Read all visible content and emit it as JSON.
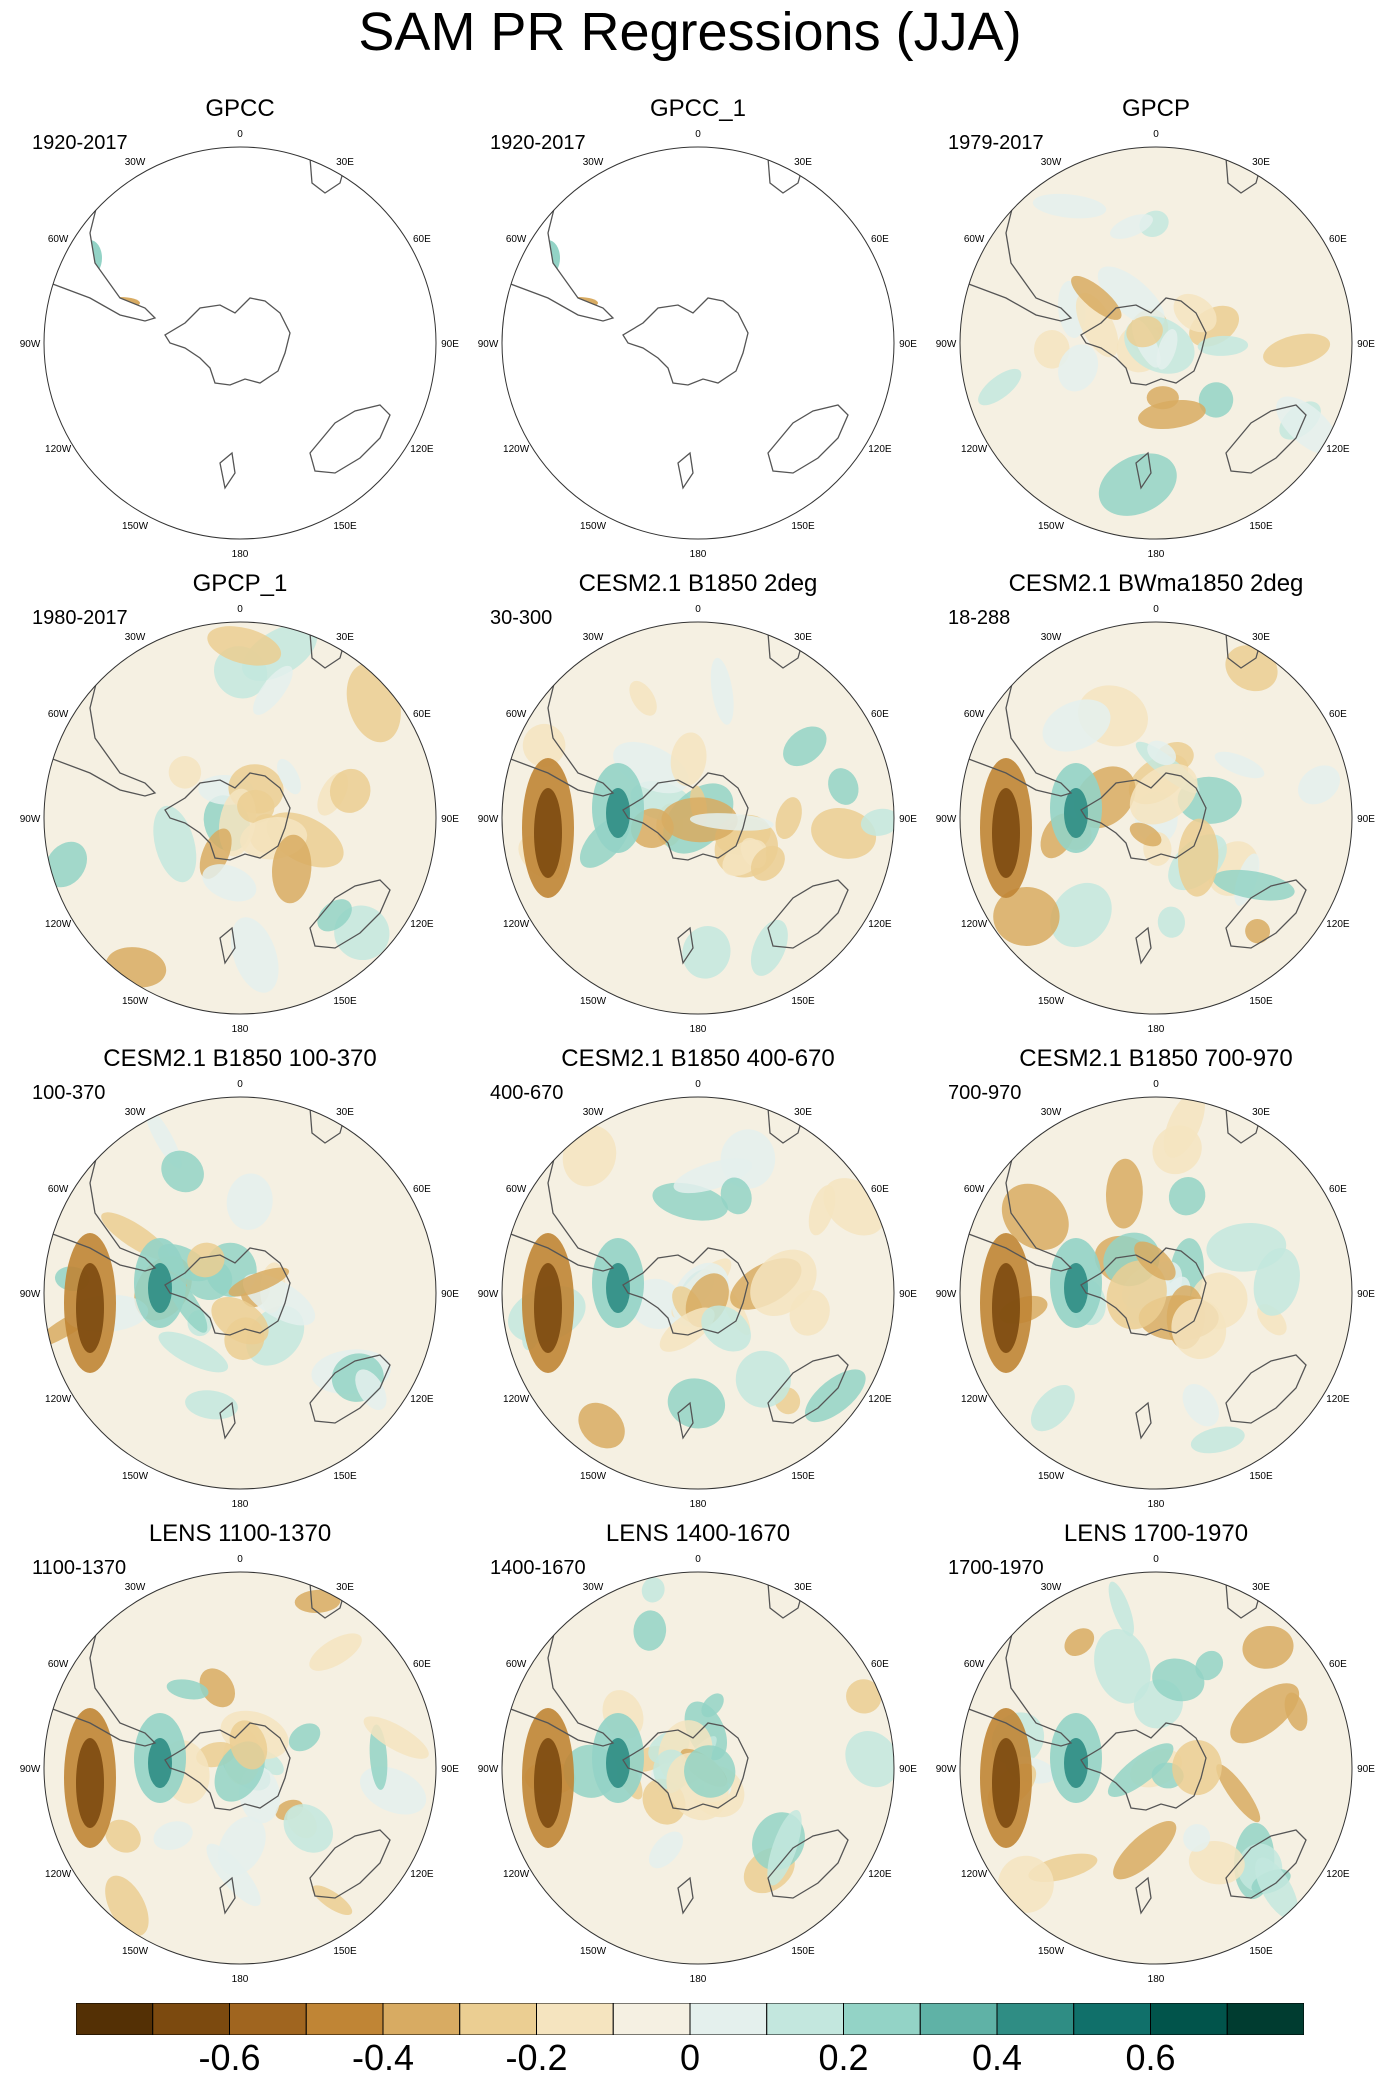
{
  "title": "SAM PR Regressions (JJA)",
  "longitude_labels": [
    "0",
    "30E",
    "60E",
    "90E",
    "120E",
    "150E",
    "180",
    "150W",
    "120W",
    "90W",
    "60W",
    "30W"
  ],
  "panels": [
    {
      "title": "GPCC",
      "period": "1920-2017",
      "coverage": "land"
    },
    {
      "title": "GPCC_1",
      "period": "1920-2017",
      "coverage": "land"
    },
    {
      "title": "GPCP",
      "period": "1979-2017",
      "coverage": "full"
    },
    {
      "title": "GPCP_1",
      "period": "1980-2017",
      "coverage": "full"
    },
    {
      "title": "CESM2.1 B1850 2deg",
      "period": "30-300",
      "coverage": "full"
    },
    {
      "title": "CESM2.1 BWma1850 2deg",
      "period": "18-288",
      "coverage": "full"
    },
    {
      "title": "CESM2.1 B1850 100-370",
      "period": "100-370",
      "coverage": "full"
    },
    {
      "title": "CESM2.1 B1850 400-670",
      "period": "400-670",
      "coverage": "full"
    },
    {
      "title": "CESM2.1 B1850 700-970",
      "period": "700-970",
      "coverage": "full"
    },
    {
      "title": "LENS 1100-1370",
      "period": "1100-1370",
      "coverage": "full"
    },
    {
      "title": "LENS 1400-1670",
      "period": "1400-1670",
      "coverage": "full"
    },
    {
      "title": "LENS 1700-1970",
      "period": "1700-1970",
      "coverage": "full"
    }
  ],
  "colorbar": {
    "colors": [
      "#543005",
      "#7c4a0f",
      "#a0651f",
      "#c08535",
      "#d8ab62",
      "#ebce92",
      "#f5e4bf",
      "#f5f0e2",
      "#e4f0ed",
      "#c3e7de",
      "#93d3c6",
      "#5fb2a6",
      "#2f8d84",
      "#10706a",
      "#01544b",
      "#003c30"
    ],
    "tick_labels": [
      "-0.6",
      "-0.4",
      "-0.2",
      "0",
      "0.2",
      "0.4",
      "0.6"
    ]
  },
  "map_style": {
    "ocean_background": "#f5f0e2",
    "land_blank": "#ffffff",
    "coastline": "#555555",
    "dry_color": "#c08535",
    "wet_color": "#2f8d84"
  }
}
